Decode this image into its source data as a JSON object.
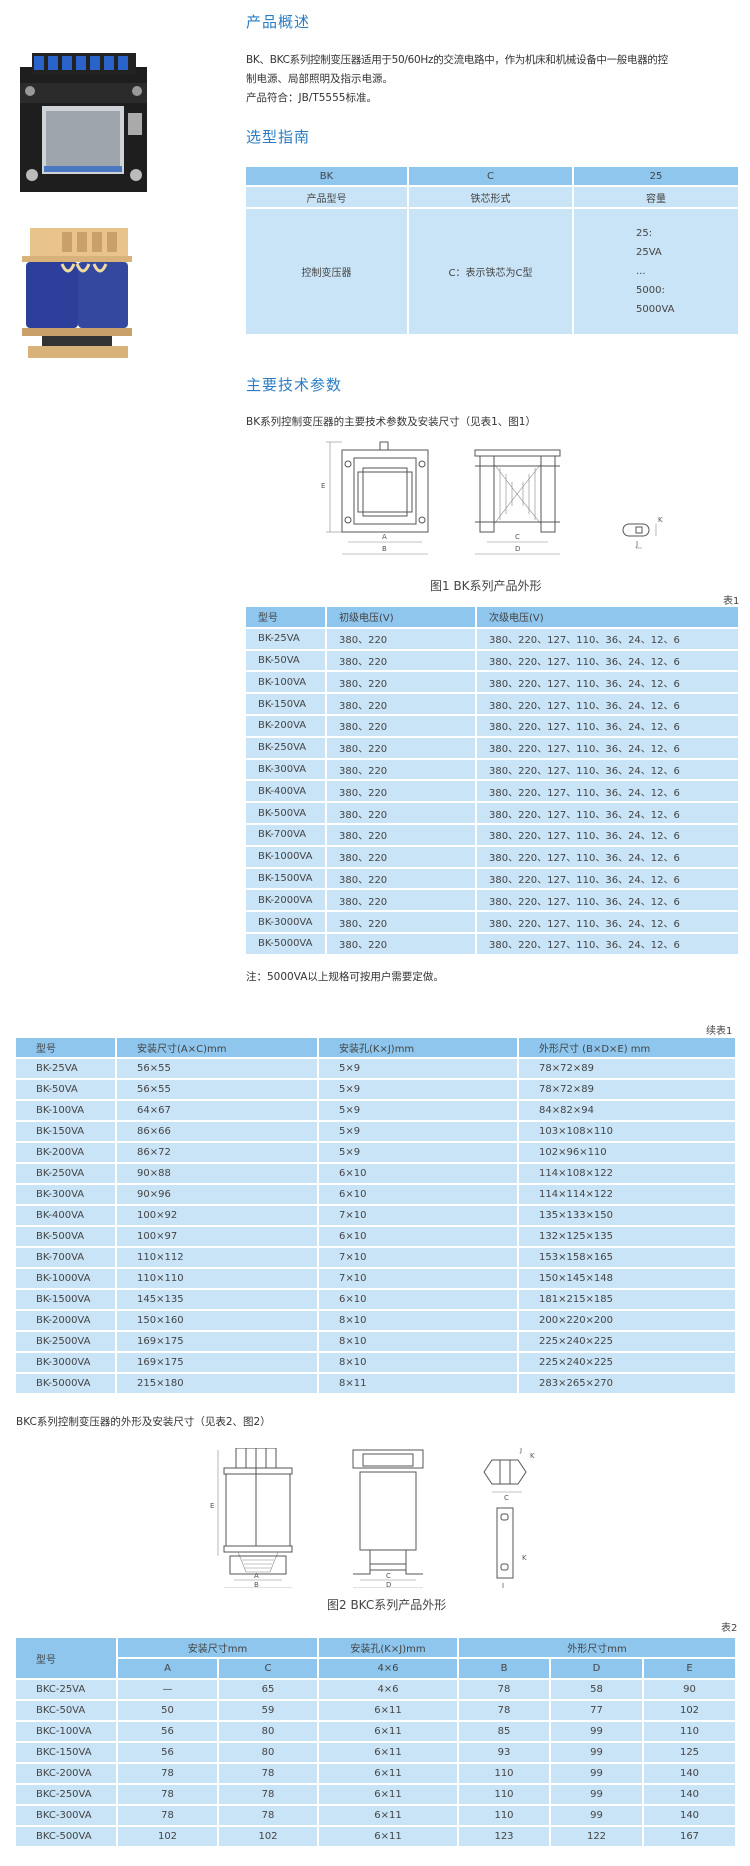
{
  "overview": {
    "title": "产品概述",
    "line1": "BK、BKC系列控制变压器适用于50/60Hz的交流电路中，作为机床和机械设备中一般电器的控",
    "line2": "制电源、局部照明及指示电源。",
    "line3": "产品符合：JB/T5555标准。"
  },
  "selection": {
    "title": "选型指南",
    "codes": [
      "BK",
      "C",
      "25"
    ],
    "headers": [
      "产品型号",
      "铁芯形式",
      "容量"
    ],
    "values": {
      "type": "控制变压器",
      "core": "C：表示铁芯为C型",
      "capacity": [
        "25:",
        "25VA",
        "...",
        "5000:",
        "5000VA"
      ]
    }
  },
  "tech": {
    "title": "主要技术参数",
    "subtitle": "BK系列控制变压器的主要技术参数及安装尺寸（见表1、图1）",
    "figure1_caption": "图1  BK系列产品外形",
    "figure1_labels": {
      "A": "A",
      "B": "B",
      "C": "C",
      "D": "D",
      "E": "E",
      "K": "K",
      "J": "J"
    },
    "table1_label": "表1",
    "table1": {
      "headers": [
        "型号",
        "初级电压(V)",
        "次级电压(V)"
      ],
      "rows": [
        [
          "BK-25VA",
          "380、220",
          "380、220、127、110、36、24、12、6"
        ],
        [
          "BK-50VA",
          "380、220",
          "380、220、127、110、36、24、12、6"
        ],
        [
          "BK-100VA",
          "380、220",
          "380、220、127、110、36、24、12、6"
        ],
        [
          "BK-150VA",
          "380、220",
          "380、220、127、110、36、24、12、6"
        ],
        [
          "BK-200VA",
          "380、220",
          "380、220、127、110、36、24、12、6"
        ],
        [
          "BK-250VA",
          "380、220",
          "380、220、127、110、36、24、12、6"
        ],
        [
          "BK-300VA",
          "380、220",
          "380、220、127、110、36、24、12、6"
        ],
        [
          "BK-400VA",
          "380、220",
          "380、220、127、110、36、24、12、6"
        ],
        [
          "BK-500VA",
          "380、220",
          "380、220、127、110、36、24、12、6"
        ],
        [
          "BK-700VA",
          "380、220",
          "380、220、127、110、36、24、12、6"
        ],
        [
          "BK-1000VA",
          "380、220",
          "380、220、127、110、36、24、12、6"
        ],
        [
          "BK-1500VA",
          "380、220",
          "380、220、127、110、36、24、12、6"
        ],
        [
          "BK-2000VA",
          "380、220",
          "380、220、127、110、36、24、12、6"
        ],
        [
          "BK-3000VA",
          "380、220",
          "380、220、127、110、36、24、12、6"
        ],
        [
          "BK-5000VA",
          "380、220",
          "380、220、127、110、36、24、12、6"
        ]
      ]
    },
    "note": "注：5000VA以上规格可按用户需要定做。"
  },
  "table1_cont": {
    "label": "续表1",
    "headers": [
      "型号",
      "安装尺寸(A×C)mm",
      "安装孔(K×J)mm",
      "外形尺寸 (B×D×E) mm"
    ],
    "rows": [
      [
        "BK-25VA",
        "56×55",
        "5×9",
        "78×72×89"
      ],
      [
        "BK-50VA",
        "56×55",
        "5×9",
        "78×72×89"
      ],
      [
        "BK-100VA",
        "64×67",
        "5×9",
        "84×82×94"
      ],
      [
        "BK-150VA",
        "86×66",
        "5×9",
        "103×108×110"
      ],
      [
        "BK-200VA",
        "86×72",
        "5×9",
        "102×96×110"
      ],
      [
        "BK-250VA",
        "90×88",
        "6×10",
        "114×108×122"
      ],
      [
        "BK-300VA",
        "90×96",
        "6×10",
        "114×114×122"
      ],
      [
        "BK-400VA",
        "100×92",
        "7×10",
        "135×133×150"
      ],
      [
        "BK-500VA",
        "100×97",
        "6×10",
        "132×125×135"
      ],
      [
        "BK-700VA",
        "110×112",
        "7×10",
        "153×158×165"
      ],
      [
        "BK-1000VA",
        "110×110",
        "7×10",
        "150×145×148"
      ],
      [
        "BK-1500VA",
        "145×135",
        "6×10",
        "181×215×185"
      ],
      [
        "BK-2000VA",
        "150×160",
        "8×10",
        "200×220×200"
      ],
      [
        "BK-2500VA",
        "169×175",
        "8×10",
        "225×240×225"
      ],
      [
        "BK-3000VA",
        "169×175",
        "8×10",
        "225×240×225"
      ],
      [
        "BK-5000VA",
        "215×180",
        "8×11",
        "283×265×270"
      ]
    ]
  },
  "bkc": {
    "subtitle": "BKC系列控制变压器的外形及安装尺寸（见表2、图2）",
    "figure2_caption": "图2  BKC系列产品外形",
    "table2_label": "表2",
    "table2": {
      "group_headers": [
        "型号",
        "安装尺寸mm",
        "安装孔(K×J)mm",
        "外形尺寸mm"
      ],
      "sub_headers": [
        "A",
        "C",
        "4×6",
        "B",
        "D",
        "E"
      ],
      "rows": [
        [
          "BKC-25VA",
          "—",
          "65",
          "4×6",
          "78",
          "58",
          "90"
        ],
        [
          "BKC-50VA",
          "50",
          "59",
          "6×11",
          "78",
          "77",
          "102"
        ],
        [
          "BKC-100VA",
          "56",
          "80",
          "6×11",
          "85",
          "99",
          "110"
        ],
        [
          "BKC-150VA",
          "56",
          "80",
          "6×11",
          "93",
          "99",
          "125"
        ],
        [
          "BKC-200VA",
          "78",
          "78",
          "6×11",
          "110",
          "99",
          "140"
        ],
        [
          "BKC-250VA",
          "78",
          "78",
          "6×11",
          "110",
          "99",
          "140"
        ],
        [
          "BKC-300VA",
          "78",
          "78",
          "6×11",
          "110",
          "99",
          "140"
        ],
        [
          "BKC-500VA",
          "102",
          "102",
          "6×11",
          "123",
          "122",
          "167"
        ]
      ]
    }
  },
  "colors": {
    "heading": "#2b7cc2",
    "table_header": "#8ec6ee",
    "table_row": "#c9e4f7"
  }
}
